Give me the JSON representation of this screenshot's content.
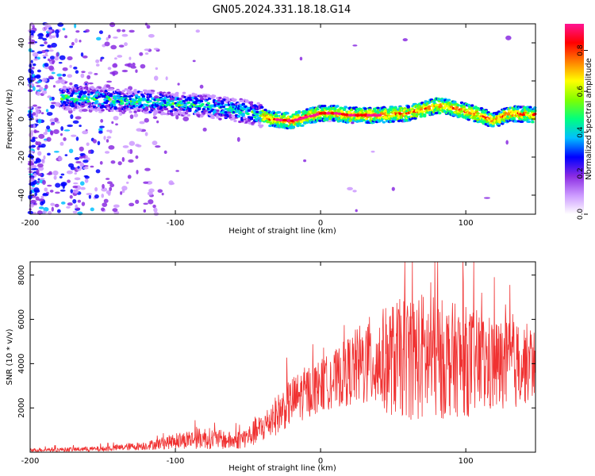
{
  "title": "GN05.2024.331.18.18.G14",
  "chart_data": [
    {
      "type": "heatmap",
      "xlabel": "Height of straight line (km)",
      "ylabel": "Frequency (Hz)",
      "xlim": [
        -200,
        148
      ],
      "ylim": [
        -50,
        50
      ],
      "xticks": [
        -200,
        -100,
        0,
        100
      ],
      "yticks": [
        -40,
        -20,
        0,
        20,
        40
      ],
      "colorbar": {
        "label": "Normalized spectral amplitude",
        "range": [
          0,
          0.93
        ],
        "ticks": [
          0.0,
          0.2,
          0.4,
          0.6,
          0.8
        ],
        "colors": [
          "#ffffff",
          "#cc99ff",
          "#8a2be2",
          "#0000ff",
          "#00bfff",
          "#00ff7f",
          "#7fff00",
          "#ffff00",
          "#ff8000",
          "#ff0000",
          "#ff1493"
        ]
      },
      "ridge": {
        "x": [
          -175,
          -160,
          -140,
          -120,
          -100,
          -80,
          -60,
          -45,
          -35,
          -20,
          -10,
          0,
          10,
          20,
          40,
          60,
          70,
          80,
          90,
          100,
          110,
          120,
          130,
          148
        ],
        "y": [
          11,
          11,
          10,
          9,
          8,
          7,
          5,
          3,
          0,
          -1,
          1,
          3,
          3,
          2,
          2,
          3,
          5,
          7,
          6,
          4,
          2,
          -1,
          3,
          2
        ]
      }
    },
    {
      "type": "line",
      "xlabel": "Height of straight line (km)",
      "ylabel": "SNR (10 * v/v)",
      "xlim": [
        -200,
        148
      ],
      "ylim": [
        0,
        8600
      ],
      "xticks": [
        -200,
        -100,
        0,
        100
      ],
      "yticks": [
        2000,
        4000,
        6000,
        8000
      ],
      "color": "#f03232",
      "envelope": {
        "x": [
          -200,
          -150,
          -120,
          -100,
          -80,
          -60,
          -50,
          -40,
          -30,
          -20,
          -10,
          0,
          10,
          20,
          30,
          40,
          50,
          60,
          70,
          80,
          90,
          100,
          110,
          120,
          130,
          140,
          148
        ],
        "mean": [
          100,
          150,
          300,
          500,
          650,
          500,
          700,
          1100,
          1700,
          2300,
          2700,
          3000,
          3300,
          3700,
          4000,
          4100,
          4200,
          4300,
          4300,
          4200,
          4200,
          4100,
          4000,
          3900,
          3900,
          4000,
          4000
        ],
        "amplitude": [
          80,
          120,
          200,
          350,
          500,
          400,
          500,
          700,
          900,
          1100,
          1200,
          1200,
          1300,
          1600,
          2000,
          2300,
          2600,
          2800,
          3000,
          2800,
          2600,
          2500,
          2400,
          2200,
          2100,
          1900,
          1600
        ]
      }
    }
  ]
}
